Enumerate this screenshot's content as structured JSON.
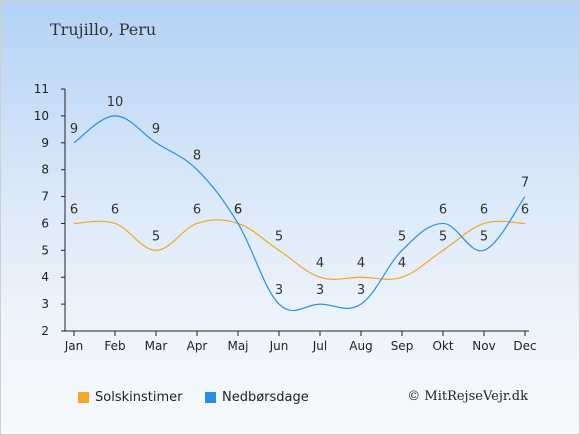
{
  "title": "Trujillo, Peru",
  "copyright": "© MitRejseVejr.dk",
  "colors": {
    "sun": "#f5a623",
    "rain": "#2a8fe0"
  },
  "chart_data": {
    "type": "line",
    "categories": [
      "Jan",
      "Feb",
      "Mar",
      "Apr",
      "Maj",
      "Jun",
      "Jul",
      "Aug",
      "Sep",
      "Okt",
      "Nov",
      "Dec"
    ],
    "ylim": [
      2,
      11
    ],
    "yticks": [
      2,
      3,
      4,
      5,
      6,
      7,
      8,
      9,
      10,
      11
    ],
    "grid": false,
    "legend": "bottom-left",
    "series": [
      {
        "name": "Solskinstimer",
        "color": "#f5a623",
        "values": [
          6,
          6,
          5,
          6,
          6,
          5,
          4,
          4,
          4,
          5,
          6,
          6
        ]
      },
      {
        "name": "Nedbørsdage",
        "color": "#2a8fe0",
        "values": [
          9,
          10,
          9,
          8,
          6,
          3,
          3,
          3,
          5,
          6,
          5,
          7
        ]
      }
    ]
  }
}
